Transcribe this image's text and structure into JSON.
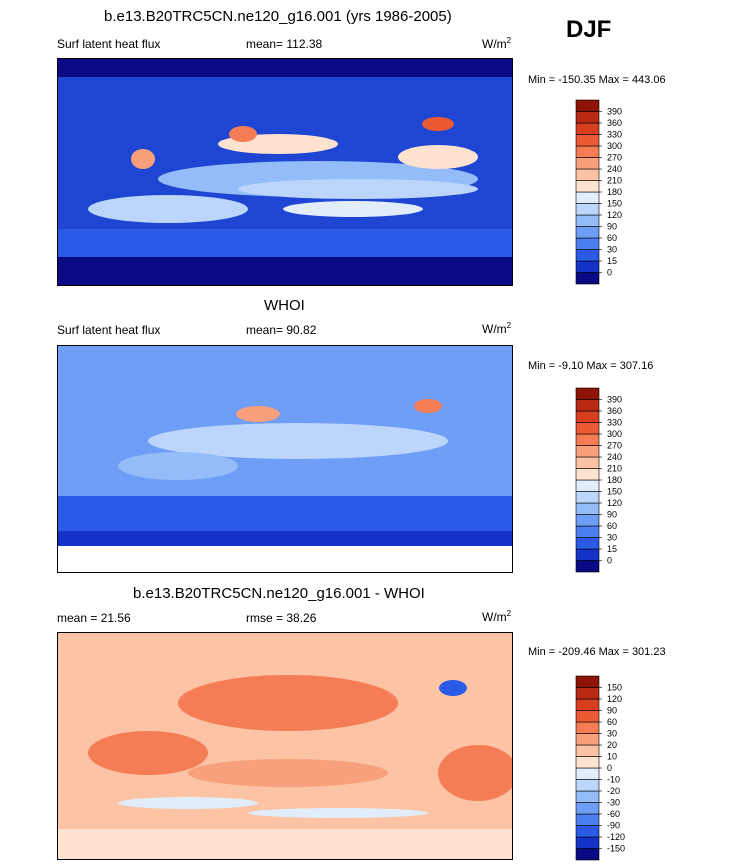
{
  "season": "DJF",
  "panels": [
    {
      "id": "model",
      "title": "b.e13.B20TRC5CN.ne120_g16.001 (yrs 1986-2005)",
      "left_label": "Surf latent heat flux",
      "center_label": "mean= 112.38",
      "units": "W/m",
      "units_sup": "2",
      "minmax": "Min = -150.35 Max = 443.06"
    },
    {
      "id": "obs",
      "title": "WHOI",
      "left_label": "Surf latent heat flux",
      "center_label": "mean=  90.82",
      "units": "W/m",
      "units_sup": "2",
      "minmax": "Min =  -9.10 Max = 307.16"
    },
    {
      "id": "diff",
      "title": "b.e13.B20TRC5CN.ne120_g16.001 - WHOI",
      "left_label": "mean =  21.56",
      "center_label": "rmse =  38.26",
      "units": "W/m",
      "units_sup": "2",
      "minmax": "Min = -209.46 Max = 301.23"
    }
  ],
  "colors": {
    "flux_scale": [
      "#0a0a82",
      "#1432c8",
      "#2a5ae6",
      "#4a7ff0",
      "#6e9ef5",
      "#94bcf8",
      "#bcd6fb",
      "#e2edfc",
      "#fde2cf",
      "#fcc3a4",
      "#f8a07c",
      "#f47d56",
      "#ec5a34",
      "#d73f1e",
      "#b82a12",
      "#8c1404"
    ],
    "diff_scale": [
      "#0a0a82",
      "#1432c8",
      "#2a5ae6",
      "#4a7ff0",
      "#6e9ef5",
      "#94bcf8",
      "#bcd6fb",
      "#e2edfc",
      "#fde2cf",
      "#fcc3a4",
      "#f8a07c",
      "#f47d56",
      "#ec5a34",
      "#d73f1e",
      "#b82a12",
      "#8c1404"
    ],
    "land": "#ffffff",
    "coast": "#000000"
  },
  "chart_data": [
    {
      "type": "heatmap",
      "title": "b.e13.B20TRC5CN.ne120_g16.001 (yrs 1986-2005)",
      "field": "Surf latent heat flux",
      "units": "W/m2",
      "mean": 112.38,
      "min": -150.35,
      "max": 443.06,
      "colorbar_levels": [
        0,
        15,
        30,
        60,
        90,
        120,
        150,
        180,
        210,
        240,
        270,
        300,
        330,
        360,
        390
      ]
    },
    {
      "type": "heatmap",
      "title": "WHOI",
      "field": "Surf latent heat flux",
      "units": "W/m2",
      "mean": 90.82,
      "min": -9.1,
      "max": 307.16,
      "colorbar_levels": [
        0,
        15,
        30,
        60,
        90,
        120,
        150,
        180,
        210,
        240,
        270,
        300,
        330,
        360,
        390
      ]
    },
    {
      "type": "heatmap",
      "title": "b.e13.B20TRC5CN.ne120_g16.001 - WHOI",
      "units": "W/m2",
      "mean": 21.56,
      "rmse": 38.26,
      "min": -209.46,
      "max": 301.23,
      "colorbar_levels": [
        -150,
        -120,
        -90,
        -60,
        -30,
        -20,
        -10,
        0,
        10,
        20,
        30,
        60,
        90,
        120,
        150
      ]
    }
  ]
}
